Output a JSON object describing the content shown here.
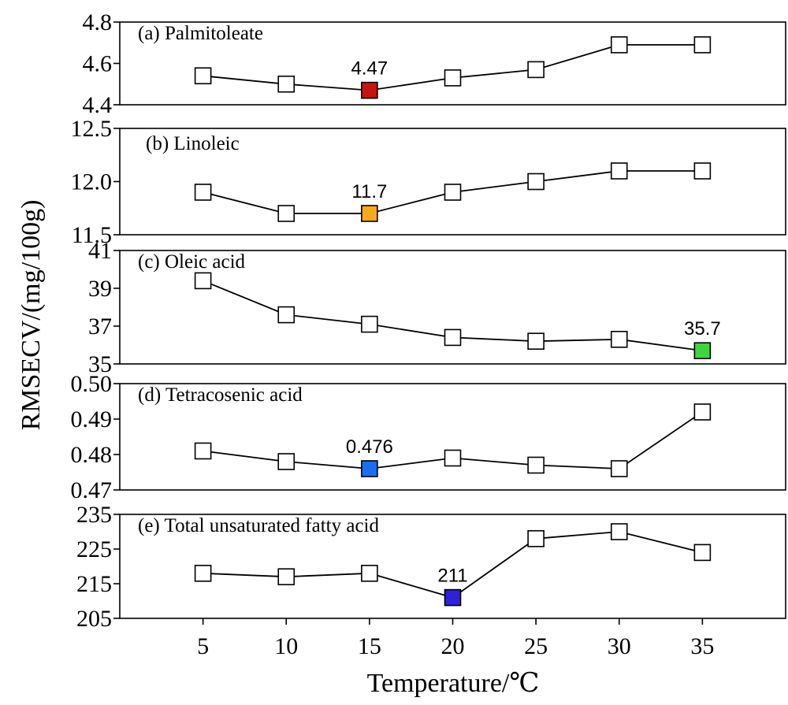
{
  "chart_data": {
    "type": "line",
    "xlabel": "Temperature/℃",
    "ylabel": "RMSECV/(mg/100g)",
    "x": [
      5,
      10,
      15,
      20,
      25,
      30,
      35
    ],
    "xlim": [
      0,
      40
    ],
    "grid": false,
    "panels": [
      {
        "title": "(a) Palmitoleate",
        "values": [
          4.54,
          4.5,
          4.47,
          4.53,
          4.57,
          4.69,
          4.69
        ],
        "ylim": [
          4.4,
          4.8
        ],
        "yticks": [
          "4.4",
          "4.6",
          "4.8"
        ],
        "highlight_index": 2,
        "highlight_color": "#c8140e",
        "highlight_label": "4.47"
      },
      {
        "title": "(b) Linoleic",
        "values": [
          11.9,
          11.7,
          11.7,
          11.9,
          12.0,
          12.1,
          12.1
        ],
        "ylim": [
          11.5,
          12.5
        ],
        "yticks": [
          "11.5",
          "12.0",
          "12.5"
        ],
        "highlight_index": 2,
        "highlight_color": "#f6a91b",
        "highlight_label": "11.7"
      },
      {
        "title": "(c) Oleic acid",
        "values": [
          39.4,
          37.6,
          37.1,
          36.4,
          36.2,
          36.3,
          35.7
        ],
        "ylim": [
          35,
          41
        ],
        "yticks": [
          "35",
          "37",
          "39",
          "41"
        ],
        "highlight_index": 6,
        "highlight_color": "#3fd43d",
        "highlight_label": "35.7"
      },
      {
        "title": "(d) Tetracosenic acid",
        "values": [
          0.481,
          0.478,
          0.476,
          0.479,
          0.477,
          0.476,
          0.492
        ],
        "ylim": [
          0.47,
          0.5
        ],
        "yticks": [
          "0.47",
          "0.48",
          "0.49",
          "0.50"
        ],
        "highlight_index": 2,
        "highlight_color": "#1a6ff0",
        "highlight_label": "0.476"
      },
      {
        "title": "(e) Total unsaturated fatty acid",
        "values": [
          218,
          217,
          218,
          211,
          228,
          230,
          224
        ],
        "ylim": [
          205,
          235
        ],
        "yticks": [
          "205",
          "215",
          "225",
          "235"
        ],
        "highlight_index": 3,
        "highlight_color": "#2d22d8",
        "highlight_label": "211"
      }
    ]
  }
}
